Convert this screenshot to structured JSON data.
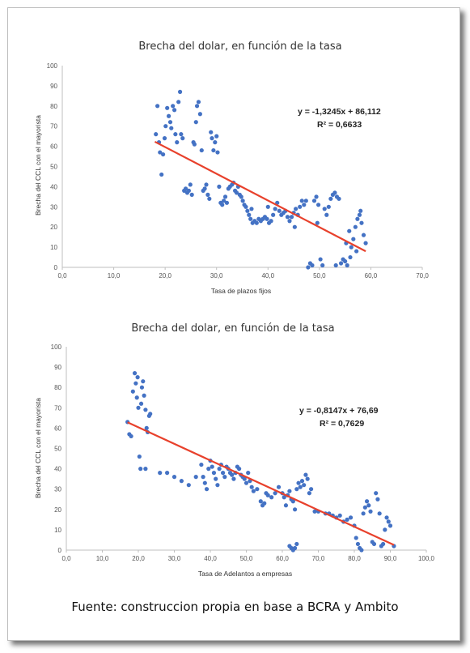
{
  "caption": "Fuente: construccion propia en base a BCRA y Ambito",
  "colors": {
    "points": "#4472c4",
    "trend": "#e8412c",
    "axis": "#bfbfbf"
  },
  "chart_data": [
    {
      "type": "scatter",
      "title": "Brecha del dolar, en función de la tasa",
      "xlabel": "Tasa de plazos fijos",
      "ylabel": "Brecha del CCL con el mayorista",
      "xlim": [
        0,
        70
      ],
      "ylim": [
        0,
        100
      ],
      "xticks": [
        0,
        10,
        20,
        30,
        40,
        50,
        60,
        70
      ],
      "yticks": [
        0,
        10,
        20,
        30,
        40,
        50,
        60,
        70,
        80,
        90,
        100
      ],
      "xtick_labels": [
        "0,0",
        "10,0",
        "20,0",
        "30,0",
        "40,0",
        "50,0",
        "60,0",
        "70,0"
      ],
      "ytick_labels": [
        "0",
        "10",
        "20",
        "30",
        "40",
        "50",
        "60",
        "70",
        "80",
        "90",
        "100"
      ],
      "trendline": {
        "slope": -1.3245,
        "intercept": 86.112,
        "x_range": [
          18,
          59
        ]
      },
      "equation_text": "y = -1,3245x + 86,112",
      "r2_text": "R² = 0,6633",
      "points": [
        [
          18.2,
          66
        ],
        [
          18.5,
          80
        ],
        [
          18.8,
          62
        ],
        [
          19.0,
          57
        ],
        [
          19.3,
          46
        ],
        [
          19.6,
          56
        ],
        [
          19.9,
          64
        ],
        [
          20.1,
          70
        ],
        [
          20.4,
          79
        ],
        [
          20.7,
          75
        ],
        [
          21.0,
          72
        ],
        [
          21.2,
          69
        ],
        [
          21.5,
          80
        ],
        [
          21.8,
          78
        ],
        [
          22.0,
          66
        ],
        [
          22.3,
          62
        ],
        [
          22.6,
          82
        ],
        [
          22.9,
          87
        ],
        [
          23.1,
          66
        ],
        [
          23.4,
          64
        ],
        [
          23.7,
          38
        ],
        [
          24.0,
          39
        ],
        [
          24.3,
          37
        ],
        [
          24.6,
          38
        ],
        [
          24.9,
          41
        ],
        [
          25.2,
          36
        ],
        [
          25.5,
          62
        ],
        [
          25.7,
          61
        ],
        [
          26.0,
          72
        ],
        [
          26.2,
          80
        ],
        [
          26.5,
          82
        ],
        [
          26.8,
          76
        ],
        [
          27.1,
          58
        ],
        [
          27.4,
          38
        ],
        [
          27.7,
          39
        ],
        [
          28.0,
          41
        ],
        [
          28.3,
          36
        ],
        [
          28.6,
          34
        ],
        [
          28.9,
          67
        ],
        [
          29.1,
          64
        ],
        [
          29.4,
          58
        ],
        [
          29.7,
          62
        ],
        [
          30.0,
          65
        ],
        [
          30.2,
          57
        ],
        [
          30.5,
          40
        ],
        [
          30.8,
          32
        ],
        [
          31.1,
          31
        ],
        [
          31.4,
          33
        ],
        [
          31.7,
          35
        ],
        [
          32.0,
          32
        ],
        [
          32.3,
          39
        ],
        [
          32.6,
          40
        ],
        [
          33.0,
          41
        ],
        [
          33.3,
          42
        ],
        [
          33.6,
          38
        ],
        [
          33.9,
          37
        ],
        [
          34.2,
          40
        ],
        [
          34.5,
          36
        ],
        [
          34.8,
          35
        ],
        [
          35.1,
          33
        ],
        [
          35.4,
          31
        ],
        [
          35.7,
          30
        ],
        [
          36.0,
          28
        ],
        [
          36.3,
          26
        ],
        [
          36.6,
          24
        ],
        [
          37.0,
          22
        ],
        [
          37.4,
          23
        ],
        [
          37.8,
          22
        ],
        [
          38.2,
          24
        ],
        [
          38.6,
          23
        ],
        [
          39.0,
          24
        ],
        [
          39.4,
          25
        ],
        [
          39.8,
          24
        ],
        [
          40.2,
          22
        ],
        [
          40.6,
          23
        ],
        [
          41.0,
          26
        ],
        [
          41.4,
          29
        ],
        [
          41.8,
          32
        ],
        [
          42.2,
          28
        ],
        [
          42.6,
          26
        ],
        [
          43.0,
          27
        ],
        [
          43.4,
          28
        ],
        [
          43.8,
          25
        ],
        [
          44.2,
          23
        ],
        [
          44.6,
          25
        ],
        [
          45.0,
          27
        ],
        [
          45.4,
          29
        ],
        [
          45.8,
          26
        ],
        [
          46.2,
          30
        ],
        [
          46.6,
          33
        ],
        [
          47.0,
          31
        ],
        [
          47.4,
          33
        ],
        [
          47.8,
          0
        ],
        [
          48.2,
          2
        ],
        [
          48.6,
          1
        ],
        [
          49.0,
          33
        ],
        [
          49.4,
          35
        ],
        [
          49.8,
          31
        ],
        [
          50.2,
          4
        ],
        [
          50.6,
          1
        ],
        [
          51.0,
          29
        ],
        [
          51.4,
          26
        ],
        [
          51.8,
          30
        ],
        [
          52.2,
          34
        ],
        [
          52.6,
          36
        ],
        [
          53.0,
          37
        ],
        [
          53.4,
          35
        ],
        [
          53.8,
          34
        ],
        [
          54.2,
          2
        ],
        [
          54.6,
          4
        ],
        [
          55.0,
          3
        ],
        [
          55.4,
          1
        ],
        [
          55.8,
          18
        ],
        [
          56.2,
          10
        ],
        [
          56.6,
          14
        ],
        [
          57.0,
          20
        ],
        [
          57.4,
          24
        ],
        [
          57.8,
          26
        ],
        [
          58.2,
          22
        ],
        [
          58.6,
          16
        ],
        [
          59.0,
          12
        ],
        [
          55.2,
          12
        ],
        [
          56.0,
          5
        ],
        [
          57.2,
          8
        ],
        [
          58.0,
          28
        ],
        [
          53.2,
          1
        ],
        [
          49.6,
          22
        ],
        [
          45.2,
          20
        ],
        [
          40.0,
          30
        ],
        [
          36.8,
          29
        ]
      ]
    },
    {
      "type": "scatter",
      "title": "Brecha del dolar, en función de la tasa",
      "xlabel": "Tasa de Adelantos a empresas",
      "ylabel": "Brecha del CCL con el mayorista",
      "xlim": [
        0,
        100
      ],
      "ylim": [
        0,
        100
      ],
      "xticks": [
        0,
        10,
        20,
        30,
        40,
        50,
        60,
        70,
        80,
        90,
        100
      ],
      "yticks": [
        0,
        10,
        20,
        30,
        40,
        50,
        60,
        70,
        80,
        90,
        100
      ],
      "xtick_labels": [
        "0,0",
        "10,0",
        "20,0",
        "30,0",
        "40,0",
        "50,0",
        "60,0",
        "70,0",
        "80,0",
        "90,0",
        "100,0"
      ],
      "ytick_labels": [
        "0",
        "10",
        "20",
        "30",
        "40",
        "50",
        "60",
        "70",
        "80",
        "90",
        "100"
      ],
      "trendline": {
        "slope": -0.8147,
        "intercept": 76.69,
        "x_range": [
          17,
          91
        ]
      },
      "equation_text": "y = -0,8147x + 76,69",
      "r2_text": "R² = 0,7629",
      "points": [
        [
          17.0,
          63
        ],
        [
          17.5,
          57
        ],
        [
          18.0,
          56
        ],
        [
          18.5,
          78
        ],
        [
          19.0,
          87
        ],
        [
          19.3,
          82
        ],
        [
          19.6,
          75
        ],
        [
          20.0,
          70
        ],
        [
          20.3,
          46
        ],
        [
          20.6,
          40
        ],
        [
          21.0,
          80
        ],
        [
          21.3,
          83
        ],
        [
          21.6,
          76
        ],
        [
          22.0,
          69
        ],
        [
          22.3,
          60
        ],
        [
          22.6,
          58
        ],
        [
          23.0,
          66
        ],
        [
          23.3,
          67
        ],
        [
          19.8,
          85
        ],
        [
          20.8,
          72
        ],
        [
          22.0,
          40
        ],
        [
          26.0,
          38
        ],
        [
          28.0,
          38
        ],
        [
          30.0,
          36
        ],
        [
          32.0,
          34
        ],
        [
          34.0,
          32
        ],
        [
          36.0,
          36
        ],
        [
          37.5,
          42
        ],
        [
          38.0,
          36
        ],
        [
          38.5,
          33
        ],
        [
          39.0,
          30
        ],
        [
          39.5,
          40
        ],
        [
          40.0,
          44
        ],
        [
          40.5,
          41
        ],
        [
          41.0,
          38
        ],
        [
          41.5,
          35
        ],
        [
          42.0,
          32
        ],
        [
          42.5,
          40
        ],
        [
          43.0,
          42
        ],
        [
          43.5,
          38
        ],
        [
          44.0,
          36
        ],
        [
          44.5,
          41
        ],
        [
          45.0,
          40
        ],
        [
          45.5,
          38
        ],
        [
          46.0,
          37
        ],
        [
          46.5,
          35
        ],
        [
          47.0,
          38
        ],
        [
          47.5,
          41
        ],
        [
          48.0,
          40
        ],
        [
          48.5,
          37
        ],
        [
          49.0,
          36
        ],
        [
          49.5,
          35
        ],
        [
          50.0,
          33
        ],
        [
          50.5,
          38
        ],
        [
          51.0,
          34
        ],
        [
          51.5,
          31
        ],
        [
          52.0,
          29
        ],
        [
          53.0,
          30
        ],
        [
          54.0,
          24
        ],
        [
          54.5,
          22
        ],
        [
          55.0,
          23
        ],
        [
          55.5,
          28
        ],
        [
          56.0,
          27
        ],
        [
          57.0,
          26
        ],
        [
          58.0,
          28
        ],
        [
          59.0,
          31
        ],
        [
          60.0,
          28
        ],
        [
          60.5,
          26
        ],
        [
          61.0,
          22
        ],
        [
          61.5,
          27
        ],
        [
          62.0,
          29
        ],
        [
          62.5,
          25
        ],
        [
          63.0,
          24
        ],
        [
          63.5,
          20
        ],
        [
          64.0,
          30
        ],
        [
          64.5,
          33
        ],
        [
          65.0,
          31
        ],
        [
          65.5,
          34
        ],
        [
          66.0,
          32
        ],
        [
          66.5,
          37
        ],
        [
          67.0,
          35
        ],
        [
          67.5,
          28
        ],
        [
          68.0,
          30
        ],
        [
          62.0,
          2
        ],
        [
          62.5,
          1
        ],
        [
          63.0,
          0
        ],
        [
          63.5,
          1
        ],
        [
          64.0,
          3
        ],
        [
          69.0,
          19
        ],
        [
          70.0,
          19
        ],
        [
          72.0,
          18
        ],
        [
          73.0,
          18
        ],
        [
          74.0,
          17
        ],
        [
          75.0,
          16
        ],
        [
          76.0,
          17
        ],
        [
          77.0,
          14
        ],
        [
          78.0,
          15
        ],
        [
          79.0,
          16
        ],
        [
          80.0,
          12
        ],
        [
          80.5,
          6
        ],
        [
          81.0,
          3
        ],
        [
          81.5,
          1
        ],
        [
          82.0,
          0
        ],
        [
          82.5,
          18
        ],
        [
          83.0,
          21
        ],
        [
          83.5,
          24
        ],
        [
          84.0,
          22
        ],
        [
          84.5,
          19
        ],
        [
          85.0,
          4
        ],
        [
          85.5,
          3
        ],
        [
          86.0,
          28
        ],
        [
          86.5,
          25
        ],
        [
          87.0,
          18
        ],
        [
          87.5,
          2
        ],
        [
          88.0,
          3
        ],
        [
          88.5,
          10
        ],
        [
          89.0,
          16
        ],
        [
          89.5,
          14
        ],
        [
          90.0,
          12
        ],
        [
          91.0,
          2
        ]
      ]
    }
  ]
}
